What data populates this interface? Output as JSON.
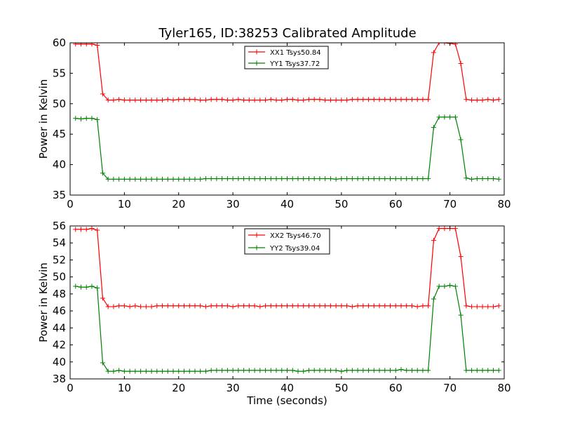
{
  "figure": {
    "title": "Tyler165, ID:38253 Calibrated Amplitude"
  },
  "chart_data": [
    {
      "type": "line",
      "title": "Tyler165, ID:38253 Calibrated Amplitude",
      "xlabel": "",
      "ylabel": "Power in Kelvin",
      "xlim": [
        0,
        80
      ],
      "ylim": [
        35,
        60
      ],
      "xticks": [
        0,
        10,
        20,
        30,
        40,
        50,
        60,
        70,
        80
      ],
      "yticks": [
        35,
        40,
        45,
        50,
        55,
        60
      ],
      "grid": false,
      "legend_position": "top-center",
      "series": [
        {
          "name": "XX1 Tsys50.84",
          "color": "#ff0000",
          "x": [
            1,
            2,
            3,
            4,
            5,
            6,
            7,
            8,
            9,
            10,
            11,
            12,
            13,
            14,
            15,
            16,
            17,
            18,
            19,
            20,
            21,
            22,
            23,
            24,
            25,
            26,
            27,
            28,
            29,
            30,
            31,
            32,
            33,
            34,
            35,
            36,
            37,
            38,
            39,
            40,
            41,
            42,
            43,
            44,
            45,
            46,
            47,
            48,
            49,
            50,
            51,
            52,
            53,
            54,
            55,
            56,
            57,
            58,
            59,
            60,
            61,
            62,
            63,
            64,
            65,
            66,
            67,
            68,
            69,
            70,
            71,
            72,
            73,
            74,
            75,
            76,
            77,
            78,
            79
          ],
          "values": [
            59.8,
            59.8,
            59.8,
            59.8,
            59.6,
            51.6,
            50.6,
            50.6,
            50.7,
            50.6,
            50.6,
            50.6,
            50.6,
            50.6,
            50.6,
            50.6,
            50.6,
            50.7,
            50.6,
            50.7,
            50.7,
            50.7,
            50.7,
            50.6,
            50.6,
            50.7,
            50.7,
            50.7,
            50.6,
            50.6,
            50.7,
            50.6,
            50.6,
            50.6,
            50.6,
            50.6,
            50.7,
            50.6,
            50.6,
            50.7,
            50.7,
            50.6,
            50.6,
            50.7,
            50.7,
            50.7,
            50.6,
            50.6,
            50.6,
            50.6,
            50.6,
            50.7,
            50.7,
            50.7,
            50.7,
            50.7,
            50.7,
            50.7,
            50.7,
            50.7,
            50.7,
            50.7,
            50.7,
            50.7,
            50.7,
            50.7,
            58.4,
            60.0,
            60.0,
            59.9,
            59.8,
            56.6,
            50.7,
            50.6,
            50.6,
            50.6,
            50.7,
            50.6,
            50.7
          ]
        },
        {
          "name": "YY1 Tsys37.72",
          "color": "#008000",
          "x": [
            1,
            2,
            3,
            4,
            5,
            6,
            7,
            8,
            9,
            10,
            11,
            12,
            13,
            14,
            15,
            16,
            17,
            18,
            19,
            20,
            21,
            22,
            23,
            24,
            25,
            26,
            27,
            28,
            29,
            30,
            31,
            32,
            33,
            34,
            35,
            36,
            37,
            38,
            39,
            40,
            41,
            42,
            43,
            44,
            45,
            46,
            47,
            48,
            49,
            50,
            51,
            52,
            53,
            54,
            55,
            56,
            57,
            58,
            59,
            60,
            61,
            62,
            63,
            64,
            65,
            66,
            67,
            68,
            69,
            70,
            71,
            72,
            73,
            74,
            75,
            76,
            77,
            78,
            79
          ],
          "values": [
            47.6,
            47.5,
            47.6,
            47.6,
            47.4,
            38.6,
            37.6,
            37.6,
            37.6,
            37.6,
            37.6,
            37.6,
            37.6,
            37.6,
            37.6,
            37.6,
            37.6,
            37.6,
            37.6,
            37.6,
            37.6,
            37.6,
            37.6,
            37.6,
            37.7,
            37.7,
            37.7,
            37.7,
            37.7,
            37.7,
            37.7,
            37.7,
            37.7,
            37.7,
            37.7,
            37.7,
            37.7,
            37.7,
            37.7,
            37.7,
            37.7,
            37.7,
            37.7,
            37.7,
            37.7,
            37.7,
            37.7,
            37.7,
            37.6,
            37.7,
            37.7,
            37.7,
            37.7,
            37.7,
            37.7,
            37.7,
            37.7,
            37.7,
            37.7,
            37.7,
            37.7,
            37.7,
            37.7,
            37.7,
            37.7,
            37.7,
            46.1,
            47.8,
            47.8,
            47.8,
            47.8,
            44.1,
            37.8,
            37.6,
            37.7,
            37.7,
            37.7,
            37.7,
            37.6
          ]
        }
      ]
    },
    {
      "type": "line",
      "title": "",
      "xlabel": "Time (seconds)",
      "ylabel": "Power in Kelvin",
      "xlim": [
        0,
        80
      ],
      "ylim": [
        38,
        56
      ],
      "xticks": [
        0,
        10,
        20,
        30,
        40,
        50,
        60,
        70,
        80
      ],
      "yticks": [
        38,
        40,
        42,
        44,
        46,
        48,
        50,
        52,
        54,
        56
      ],
      "grid": false,
      "legend_position": "top-center",
      "series": [
        {
          "name": "XX2 Tsys46.70",
          "color": "#ff0000",
          "x": [
            1,
            2,
            3,
            4,
            5,
            6,
            7,
            8,
            9,
            10,
            11,
            12,
            13,
            14,
            15,
            16,
            17,
            18,
            19,
            20,
            21,
            22,
            23,
            24,
            25,
            26,
            27,
            28,
            29,
            30,
            31,
            32,
            33,
            34,
            35,
            36,
            37,
            38,
            39,
            40,
            41,
            42,
            43,
            44,
            45,
            46,
            47,
            48,
            49,
            50,
            51,
            52,
            53,
            54,
            55,
            56,
            57,
            58,
            59,
            60,
            61,
            62,
            63,
            64,
            65,
            66,
            67,
            68,
            69,
            70,
            71,
            72,
            73,
            74,
            75,
            76,
            77,
            78,
            79
          ],
          "values": [
            55.6,
            55.6,
            55.6,
            55.7,
            55.5,
            47.5,
            46.5,
            46.5,
            46.6,
            46.6,
            46.5,
            46.6,
            46.5,
            46.5,
            46.5,
            46.6,
            46.6,
            46.6,
            46.6,
            46.6,
            46.6,
            46.6,
            46.6,
            46.6,
            46.5,
            46.6,
            46.6,
            46.6,
            46.6,
            46.5,
            46.6,
            46.6,
            46.6,
            46.6,
            46.5,
            46.6,
            46.6,
            46.6,
            46.6,
            46.6,
            46.6,
            46.6,
            46.6,
            46.6,
            46.6,
            46.6,
            46.6,
            46.6,
            46.6,
            46.6,
            46.6,
            46.5,
            46.6,
            46.6,
            46.6,
            46.6,
            46.6,
            46.6,
            46.6,
            46.6,
            46.6,
            46.6,
            46.6,
            46.5,
            46.6,
            46.6,
            54.3,
            55.7,
            55.7,
            55.7,
            55.7,
            52.4,
            46.6,
            46.5,
            46.5,
            46.5,
            46.5,
            46.5,
            46.6
          ]
        },
        {
          "name": "YY2 Tsys39.04",
          "color": "#008000",
          "x": [
            1,
            2,
            3,
            4,
            5,
            6,
            7,
            8,
            9,
            10,
            11,
            12,
            13,
            14,
            15,
            16,
            17,
            18,
            19,
            20,
            21,
            22,
            23,
            24,
            25,
            26,
            27,
            28,
            29,
            30,
            31,
            32,
            33,
            34,
            35,
            36,
            37,
            38,
            39,
            40,
            41,
            42,
            43,
            44,
            45,
            46,
            47,
            48,
            49,
            50,
            51,
            52,
            53,
            54,
            55,
            56,
            57,
            58,
            59,
            60,
            61,
            62,
            63,
            64,
            65,
            66,
            67,
            68,
            69,
            70,
            71,
            72,
            73,
            74,
            75,
            76,
            77,
            78,
            79
          ],
          "values": [
            48.9,
            48.8,
            48.8,
            48.9,
            48.7,
            39.9,
            38.9,
            38.9,
            39.0,
            38.9,
            38.9,
            38.9,
            38.9,
            38.9,
            38.9,
            38.9,
            38.9,
            38.9,
            38.9,
            38.9,
            38.9,
            38.9,
            38.9,
            38.9,
            38.9,
            39.0,
            39.0,
            39.0,
            39.0,
            39.0,
            39.0,
            39.0,
            39.0,
            39.0,
            39.0,
            39.0,
            39.0,
            39.0,
            39.0,
            39.0,
            39.0,
            38.9,
            38.9,
            39.0,
            39.0,
            39.0,
            39.0,
            39.0,
            39.0,
            38.9,
            39.0,
            39.0,
            39.0,
            39.0,
            39.0,
            39.0,
            39.0,
            39.0,
            39.0,
            39.0,
            39.1,
            39.0,
            39.0,
            39.0,
            39.0,
            39.0,
            47.4,
            48.9,
            48.9,
            49.0,
            48.9,
            45.5,
            39.0,
            39.0,
            39.0,
            39.0,
            39.0,
            39.0,
            39.0
          ]
        }
      ]
    }
  ]
}
